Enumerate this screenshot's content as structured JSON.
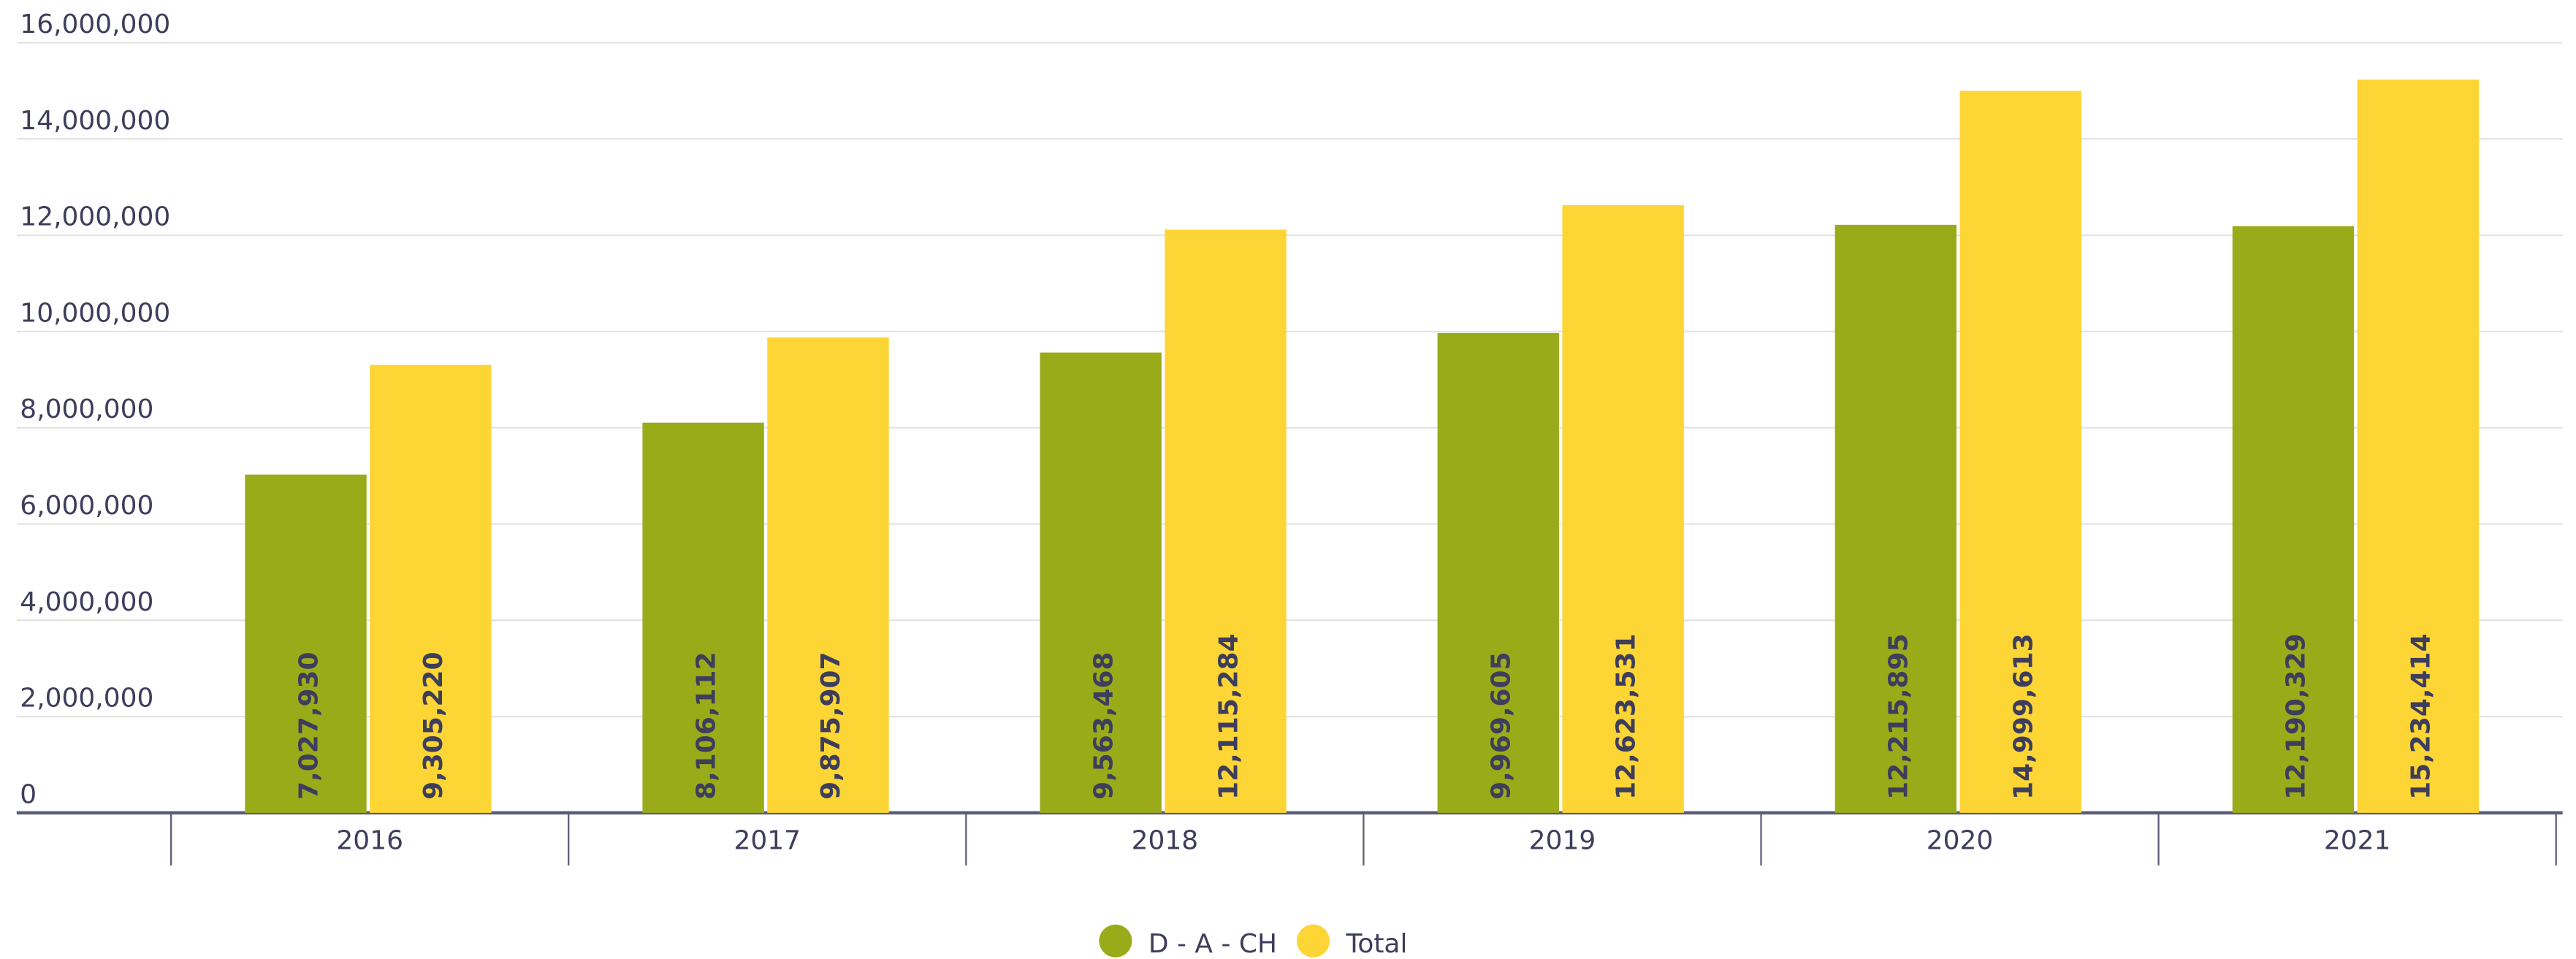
{
  "chart_data": {
    "type": "bar",
    "categories": [
      "2016",
      "2017",
      "2018",
      "2019",
      "2020",
      "2021"
    ],
    "series": [
      {
        "name": "D - A - CH",
        "color": "#9aab1a",
        "values": [
          7027930,
          8106112,
          9563468,
          9969605,
          12215895,
          12190329
        ],
        "value_labels": [
          "7,027,930",
          "8,106,112",
          "9,563,468",
          "9,969,605",
          "12,215,895",
          "12,190,329"
        ]
      },
      {
        "name": "Total",
        "color": "#fdd535",
        "values": [
          9305220,
          9875907,
          12115284,
          12623531,
          14999613,
          15234414
        ],
        "value_labels": [
          "9,305,220",
          "9,875,907",
          "12,115,284",
          "12,623,531",
          "14,999,613",
          "15,234,414"
        ]
      }
    ],
    "ylim": [
      0,
      16000000
    ],
    "yticks": [
      0,
      {
        "value": 2000000,
        "label": "2,000,000"
      },
      {
        "value": 4000000,
        "label": "4,000,000"
      },
      {
        "value": 6000000,
        "label": "6,000,000"
      },
      {
        "value": 8000000,
        "label": "8,000,000"
      },
      {
        "value": 10000000,
        "label": "10,000,000"
      },
      {
        "value": 12000000,
        "label": "12,000,000"
      },
      {
        "value": 14000000,
        "label": "14,000,000"
      },
      {
        "value": 16000000,
        "label": "16,000,000"
      }
    ],
    "grid": true,
    "legend": "bottom"
  }
}
